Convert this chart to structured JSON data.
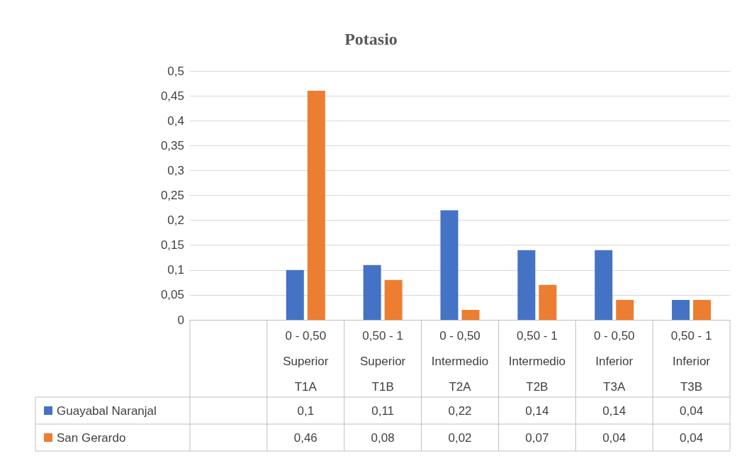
{
  "chart_data": {
    "type": "bar",
    "title": "Potasio",
    "categories": [
      null,
      "0 - 0,50\nSuperior\nT1A",
      "0,50 - 1\nSuperior\nT1B",
      "0 - 0,50\nIntermedio\nT2A",
      "0,50 - 1\nIntermedio\nT2B",
      "0 - 0,50\nInferior\nT3A",
      "0,50 - 1\nInferior\nT3B"
    ],
    "series": [
      {
        "name": "Guayabal Naranjal",
        "color": "#4472c4",
        "values": [
          null,
          0.1,
          0.11,
          0.22,
          0.14,
          0.14,
          0.04
        ],
        "value_labels": [
          null,
          "0,1",
          "0,11",
          "0,22",
          "0,14",
          "0,14",
          "0,04"
        ]
      },
      {
        "name": "San Gerardo",
        "color": "#ed7d31",
        "values": [
          null,
          0.46,
          0.08,
          0.02,
          0.07,
          0.04,
          0.04
        ],
        "value_labels": [
          null,
          "0,46",
          "0,08",
          "0,02",
          "0,07",
          "0,04",
          "0,04"
        ]
      }
    ],
    "ylim": [
      0,
      0.5
    ],
    "yticks": [
      {
        "value": 0,
        "label": "0"
      },
      {
        "value": 0.05,
        "label": "0,05"
      },
      {
        "value": 0.1,
        "label": "0,1"
      },
      {
        "value": 0.15,
        "label": "0,15"
      },
      {
        "value": 0.2,
        "label": "0,2"
      },
      {
        "value": 0.25,
        "label": "0,25"
      },
      {
        "value": 0.3,
        "label": "0,3"
      },
      {
        "value": 0.35,
        "label": "0,35"
      },
      {
        "value": 0.4,
        "label": "0,4"
      },
      {
        "value": 0.45,
        "label": "0,45"
      },
      {
        "value": 0.5,
        "label": "0,5"
      }
    ],
    "grid": "y",
    "legend": "bottom"
  }
}
